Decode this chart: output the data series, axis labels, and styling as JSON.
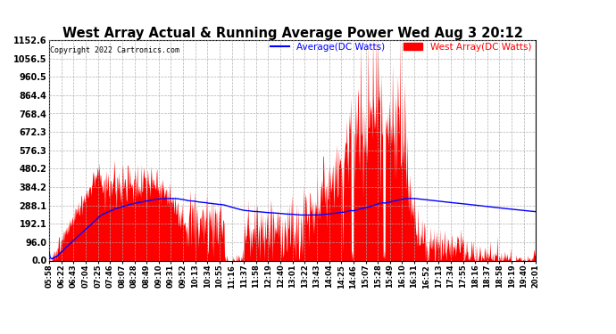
{
  "title": "West Array Actual & Running Average Power Wed Aug 3 20:12",
  "copyright": "Copyright 2022 Cartronics.com",
  "legend_avg": "Average(DC Watts)",
  "legend_west": "West Array(DC Watts)",
  "legend_avg_color": "blue",
  "legend_west_color": "red",
  "background_color": "#ffffff",
  "grid_color": "#aaaaaa",
  "yticks": [
    0.0,
    96.0,
    192.1,
    288.1,
    384.2,
    480.2,
    576.3,
    672.3,
    768.4,
    864.4,
    960.5,
    1056.5,
    1152.6
  ],
  "ymax": 1152.6,
  "xtick_labels": [
    "05:58",
    "06:22",
    "06:43",
    "07:04",
    "07:25",
    "07:46",
    "08:07",
    "08:28",
    "08:49",
    "09:10",
    "09:31",
    "09:52",
    "10:13",
    "10:34",
    "10:55",
    "11:16",
    "11:37",
    "11:58",
    "12:19",
    "12:40",
    "13:01",
    "13:22",
    "13:43",
    "14:04",
    "14:25",
    "14:46",
    "15:07",
    "15:28",
    "15:49",
    "16:10",
    "16:31",
    "16:52",
    "17:13",
    "17:34",
    "17:55",
    "18:16",
    "18:37",
    "18:58",
    "19:19",
    "19:40",
    "20:01"
  ]
}
